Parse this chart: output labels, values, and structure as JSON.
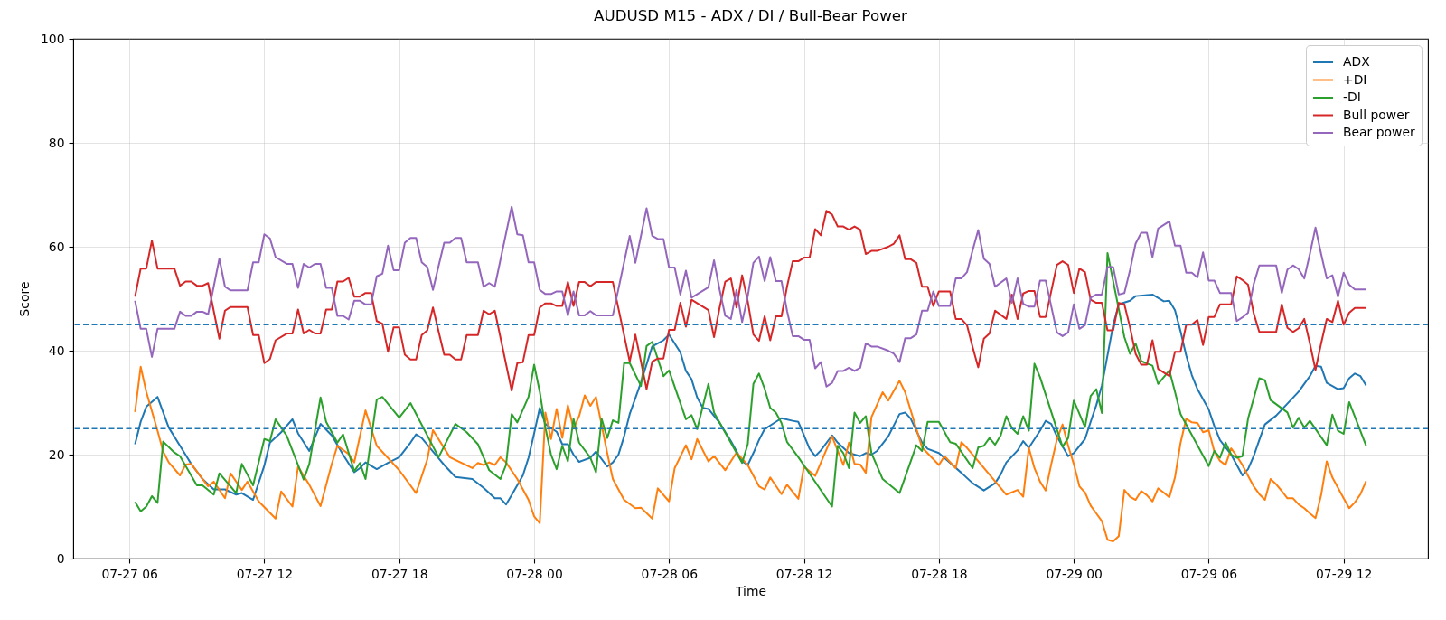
{
  "chart_data": {
    "type": "line",
    "title": "AUDUSD M15 - ADX / DI / Bull-Bear Power",
    "xlabel": "Time",
    "ylabel": "Score",
    "xlim": [
      "--07-27T03:30",
      "--07-29T15:45"
    ],
    "xticks": [
      {
        "value": "--07-27T06:00",
        "label": "07-27 06"
      },
      {
        "value": "--07-27T12:00",
        "label": "07-27 12"
      },
      {
        "value": "--07-27T18:00",
        "label": "07-27 18"
      },
      {
        "value": "--07-28T00:00",
        "label": "07-28 00"
      },
      {
        "value": "--07-28T06:00",
        "label": "07-28 06"
      },
      {
        "value": "--07-28T12:00",
        "label": "07-28 12"
      },
      {
        "value": "--07-28T18:00",
        "label": "07-28 18"
      },
      {
        "value": "--07-29T00:00",
        "label": "07-29 00"
      },
      {
        "value": "--07-29T06:00",
        "label": "07-29 06"
      },
      {
        "value": "--07-29T12:00",
        "label": "07-29 12"
      }
    ],
    "ylim": [
      0,
      100
    ],
    "yticks": [
      0,
      20,
      40,
      60,
      80,
      100
    ],
    "grid": true,
    "legend": "top right",
    "ref_lines": [
      {
        "axis": "y",
        "value": 45,
        "color": "#1f77b4",
        "line_style": "dashed"
      },
      {
        "axis": "y",
        "value": 25,
        "color": "#1f77b4",
        "line_style": "dashed"
      }
    ],
    "x": [
      "--07-27T06:15",
      "--07-27T06:30",
      "--07-27T06:45",
      "--07-27T07:00",
      "--07-27T07:15",
      "--07-27T08:00",
      "--07-27T08:15",
      "--07-27T08:30",
      "--07-27T08:45",
      "--07-27T09:00",
      "--07-27T09:15",
      "--07-27T09:30",
      "--07-27T10:00",
      "--07-27T10:15",
      "--07-27T10:30",
      "--07-27T11:15",
      "--07-27T11:30",
      "--07-27T11:45",
      "--07-27T12:00",
      "--07-27T12:15",
      "--07-27T12:30",
      "--07-27T13:00",
      "--07-27T13:15",
      "--07-27T13:30",
      "--07-27T13:45",
      "--07-27T14:00",
      "--07-27T14:15",
      "--07-27T14:30",
      "--07-27T14:45",
      "--07-27T15:00",
      "--07-27T15:15",
      "--07-27T15:30",
      "--07-27T15:45",
      "--07-27T16:00",
      "--07-27T16:15",
      "--07-27T16:30",
      "--07-27T16:45",
      "--07-27T17:00",
      "--07-27T17:15",
      "--07-27T17:30",
      "--07-27T17:45",
      "--07-27T18:00",
      "--07-27T18:15",
      "--07-27T18:30",
      "--07-27T18:45",
      "--07-27T19:00",
      "--07-27T19:15",
      "--07-27T19:30",
      "--07-27T19:45",
      "--07-27T20:00",
      "--07-27T20:15",
      "--07-27T20:30",
      "--07-27T20:45",
      "--07-27T21:00",
      "--07-27T21:30",
      "--07-27T21:45",
      "--07-27T22:00",
      "--07-27T22:15",
      "--07-27T23:00",
      "--07-27T23:15",
      "--07-27T23:30",
      "--07-27T23:45",
      "--07-28T00:00",
      "--07-28T00:15",
      "--07-28T00:30",
      "--07-28T00:45",
      "--07-28T01:00",
      "--07-28T01:15",
      "--07-28T01:30",
      "--07-28T01:45",
      "--07-28T02:00",
      "--07-28T02:15",
      "--07-28T02:30",
      "--07-28T02:45",
      "--07-28T03:30",
      "--07-28T04:15",
      "--07-28T04:30",
      "--07-28T04:45",
      "--07-28T05:00",
      "--07-28T05:15",
      "--07-28T05:30",
      "--07-28T05:45",
      "--07-28T06:00",
      "--07-28T06:15",
      "--07-28T06:30",
      "--07-28T06:45",
      "--07-28T07:00",
      "--07-28T07:45",
      "--07-28T08:00",
      "--07-28T08:15",
      "--07-28T08:30",
      "--07-28T08:45",
      "--07-28T09:00",
      "--07-28T09:15",
      "--07-28T09:30",
      "--07-28T09:45",
      "--07-28T10:00",
      "--07-28T10:15",
      "--07-28T10:30",
      "--07-28T10:45",
      "--07-28T11:00",
      "--07-28T11:15",
      "--07-28T11:30",
      "--07-28T11:45",
      "--07-28T12:00",
      "--07-28T12:15",
      "--07-28T12:30",
      "--07-28T12:45",
      "--07-28T13:00",
      "--07-28T13:15",
      "--07-28T13:30",
      "--07-28T13:45",
      "--07-28T14:00",
      "--07-28T14:15",
      "--07-28T14:30",
      "--07-28T14:45",
      "--07-28T15:00",
      "--07-28T15:15",
      "--07-28T15:45",
      "--07-28T16:00",
      "--07-28T16:15",
      "--07-28T16:30",
      "--07-28T16:45",
      "--07-28T17:00",
      "--07-28T17:15",
      "--07-28T17:30",
      "--07-28T17:45",
      "--07-28T18:00",
      "--07-28T18:30",
      "--07-28T18:45",
      "--07-28T19:00",
      "--07-28T19:15",
      "--07-28T19:30",
      "--07-28T19:45",
      "--07-28T20:00",
      "--07-28T20:15",
      "--07-28T20:30",
      "--07-28T21:00",
      "--07-28T21:15",
      "--07-28T21:30",
      "--07-28T21:45",
      "--07-28T22:00",
      "--07-28T22:15",
      "--07-28T22:30",
      "--07-28T22:45",
      "--07-28T23:15",
      "--07-28T23:30",
      "--07-28T23:45",
      "--07-29T00:00",
      "--07-29T00:15",
      "--07-29T00:30",
      "--07-29T00:45",
      "--07-29T01:00",
      "--07-29T01:15",
      "--07-29T01:30",
      "--07-29T01:45",
      "--07-29T02:00",
      "--07-29T02:15",
      "--07-29T02:30",
      "--07-29T02:45",
      "--07-29T03:00",
      "--07-29T03:15",
      "--07-29T03:30",
      "--07-29T03:45",
      "--07-29T04:15",
      "--07-29T04:30",
      "--07-29T04:45",
      "--07-29T05:00",
      "--07-29T05:15",
      "--07-29T05:30",
      "--07-29T05:45",
      "--07-29T06:00",
      "--07-29T06:15",
      "--07-29T06:30",
      "--07-29T07:00",
      "--07-29T07:15",
      "--07-29T07:30",
      "--07-29T07:45",
      "--07-29T08:00",
      "--07-29T08:15",
      "--07-29T09:00",
      "--07-29T09:15",
      "--07-29T09:30",
      "--07-29T09:45",
      "--07-29T10:00",
      "--07-29T10:15",
      "--07-29T10:30",
      "--07-29T10:45",
      "--07-29T11:00",
      "--07-29T11:15",
      "--07-29T11:30",
      "--07-29T11:45",
      "--07-29T12:00",
      "--07-29T12:15",
      "--07-29T12:30",
      "--07-29T13:00"
    ],
    "series": [
      {
        "name": "ADX",
        "color": "#1f77b4",
        "x": [
          "--07-27T06:15",
          "--07-27T06:30",
          "--07-27T06:45",
          "--07-27T07:15",
          "--07-27T07:45",
          "--07-27T08:15",
          "--07-27T08:45",
          "--07-27T09:15",
          "--07-27T09:45",
          "--07-27T10:15",
          "--07-27T10:45",
          "--07-27T11:00",
          "--07-27T11:30",
          "--07-27T12:00",
          "--07-27T12:15",
          "--07-27T12:45",
          "--07-27T13:15",
          "--07-27T13:30",
          "--07-27T14:00",
          "--07-27T14:30",
          "--07-27T15:00",
          "--07-27T15:30",
          "--07-27T16:00",
          "--07-27T16:15",
          "--07-27T16:30",
          "--07-27T17:00",
          "--07-27T17:30",
          "--07-27T18:00",
          "--07-27T18:30",
          "--07-27T18:45",
          "--07-27T19:00",
          "--07-27T19:30",
          "--07-27T20:00",
          "--07-27T20:30",
          "--07-27T21:15",
          "--07-27T21:45",
          "--07-27T22:15",
          "--07-27T22:30",
          "--07-27T22:45",
          "--07-27T23:00",
          "--07-27T23:30",
          "--07-27T23:45",
          "--07-28T00:00",
          "--07-28T00:15",
          "--07-28T00:30",
          "--07-28T01:00",
          "--07-28T01:15",
          "--07-28T01:30",
          "--07-28T01:45",
          "--07-28T02:00",
          "--07-28T02:30",
          "--07-28T02:45",
          "--07-28T03:15",
          "--07-28T03:30",
          "--07-28T03:45",
          "--07-28T04:00",
          "--07-28T04:15",
          "--07-28T04:45",
          "--07-28T05:15",
          "--07-28T05:30",
          "--07-28T05:45",
          "--07-28T06:00",
          "--07-28T06:15",
          "--07-28T06:30",
          "--07-28T06:45",
          "--07-28T07:00",
          "--07-28T07:15",
          "--07-28T07:30",
          "--07-28T07:45",
          "--07-28T08:15",
          "--07-28T08:45",
          "--07-28T09:15",
          "--07-28T09:30",
          "--07-28T09:45",
          "--07-28T10:00",
          "--07-28T10:15",
          "--07-28T10:45",
          "--07-28T11:00",
          "--07-28T11:30",
          "--07-28T11:45",
          "--07-28T12:00",
          "--07-28T12:15",
          "--07-28T12:30",
          "--07-28T12:45",
          "--07-28T13:15",
          "--07-28T13:30",
          "--07-28T14:00",
          "--07-28T14:30",
          "--07-28T14:45",
          "--07-28T15:00",
          "--07-28T15:15",
          "--07-28T15:45",
          "--07-28T16:15",
          "--07-28T16:30",
          "--07-28T16:45",
          "--07-28T17:15",
          "--07-28T17:30",
          "--07-28T18:00",
          "--07-28T19:00",
          "--07-28T19:30",
          "--07-28T20:00",
          "--07-28T20:30",
          "--07-28T20:45",
          "--07-28T21:00",
          "--07-28T21:30",
          "--07-28T21:45",
          "--07-28T22:00",
          "--07-28T22:30",
          "--07-28T22:45",
          "--07-28T23:00",
          "--07-28T23:15",
          "--07-28T23:45",
          "--07-29T00:00",
          "--07-29T00:30",
          "--07-29T00:45",
          "--07-29T01:00",
          "--07-29T01:15",
          "--07-29T01:30",
          "--07-29T01:45",
          "--07-29T02:00",
          "--07-29T02:30",
          "--07-29T02:45",
          "--07-29T03:30",
          "--07-29T04:00",
          "--07-29T04:15",
          "--07-29T04:30",
          "--07-29T04:45",
          "--07-29T05:00",
          "--07-29T05:15",
          "--07-29T05:30",
          "--07-29T06:00",
          "--07-29T06:15",
          "--07-29T06:30",
          "--07-29T07:00",
          "--07-29T07:15",
          "--07-29T07:30",
          "--07-29T07:45",
          "--07-29T08:00",
          "--07-29T08:15",
          "--07-29T08:30",
          "--07-29T09:00",
          "--07-29T09:30",
          "--07-29T10:00",
          "--07-29T10:30",
          "--07-29T10:45",
          "--07-29T11:00",
          "--07-29T11:15",
          "--07-29T11:45",
          "--07-29T12:00",
          "--07-29T12:15",
          "--07-29T12:30",
          "--07-29T12:45",
          "--07-29T13:00"
        ],
        "values": [
          22.0,
          26.3,
          29.2,
          31.1,
          25.2,
          21.7,
          18.2,
          15.3,
          13.3,
          13.3,
          12.3,
          12.6,
          11.3,
          17.9,
          22.3,
          24.3,
          26.8,
          24.1,
          20.7,
          25.9,
          23.7,
          20.0,
          16.6,
          17.4,
          18.5,
          17.2,
          18.4,
          19.5,
          22.3,
          23.9,
          23.2,
          20.6,
          18.0,
          15.7,
          15.3,
          13.6,
          11.6,
          11.6,
          10.4,
          12.2,
          16.0,
          19.4,
          24.1,
          29.0,
          25.9,
          24.4,
          22.0,
          22.0,
          20.0,
          18.6,
          19.4,
          20.6,
          17.7,
          18.5,
          20.0,
          23.5,
          27.8,
          33.9,
          40.8,
          41.4,
          42.0,
          43.1,
          41.4,
          39.7,
          36.1,
          34.5,
          31.0,
          29.0,
          28.8,
          26.1,
          22.6,
          18.7,
          18.0,
          20.3,
          22.8,
          24.9,
          26.3,
          27.0,
          26.5,
          26.3,
          23.7,
          21.1,
          19.7,
          20.8,
          23.7,
          22.3,
          20.3,
          19.7,
          20.3,
          20.0,
          20.7,
          23.5,
          27.8,
          28.1,
          26.9,
          22.3,
          21.1,
          20.3,
          16.5,
          14.5,
          13.1,
          14.5,
          16.2,
          18.5,
          20.8,
          22.6,
          21.3,
          24.6,
          26.5,
          25.9,
          23.5,
          19.7,
          20.3,
          23.0,
          26.3,
          29.5,
          33.3,
          39.1,
          44.9,
          48.9,
          49.6,
          50.5,
          50.8,
          49.5,
          49.6,
          47.8,
          43.7,
          39.1,
          35.3,
          32.6,
          28.7,
          25.5,
          22.8,
          20.0,
          18.0,
          16.0,
          17.2,
          19.7,
          22.8,
          25.8,
          27.5,
          29.8,
          32.1,
          35.1,
          37.1,
          36.9,
          33.8,
          32.6,
          32.8,
          34.7,
          35.6,
          35.1,
          33.3
        ]
      },
      {
        "name": "+DI",
        "color": "#ff7f0e",
        "x": [
          "--07-27T06:15",
          "--07-27T06:30",
          "--07-27T06:45",
          "--07-27T07:15",
          "--07-27T07:30",
          "--07-27T07:45",
          "--07-27T08:15",
          "--07-27T08:30",
          "--07-27T08:45",
          "--07-27T09:30",
          "--07-27T09:45",
          "--07-27T10:15",
          "--07-27T10:30",
          "--07-27T11:00",
          "--07-27T11:15",
          "--07-27T11:45",
          "--07-27T12:30",
          "--07-27T12:45",
          "--07-27T13:15",
          "--07-27T13:30",
          "--07-27T14:00",
          "--07-27T14:30",
          "--07-27T15:00",
          "--07-27T15:15",
          "--07-27T15:45",
          "--07-27T16:00",
          "--07-27T16:30",
          "--07-27T17:00",
          "--07-27T18:00",
          "--07-27T18:45",
          "--07-27T19:15",
          "--07-27T19:30",
          "--07-27T20:15",
          "--07-27T21:15",
          "--07-27T21:30",
          "--07-27T21:45",
          "--07-27T22:00",
          "--07-27T22:15",
          "--07-27T22:30",
          "--07-27T22:45",
          "--07-27T23:15",
          "--07-27T23:45",
          "--07-28T00:00",
          "--07-28T00:15",
          "--07-28T00:30",
          "--07-28T00:45",
          "--07-28T01:00",
          "--07-28T01:15",
          "--07-28T01:30",
          "--07-28T01:45",
          "--07-28T02:00",
          "--07-28T02:15",
          "--07-28T02:30",
          "--07-28T02:45",
          "--07-28T03:15",
          "--07-28T03:30",
          "--07-28T04:00",
          "--07-28T04:30",
          "--07-28T04:45",
          "--07-28T05:15",
          "--07-28T05:30",
          "--07-28T06:00",
          "--07-28T06:15",
          "--07-28T06:45",
          "--07-28T07:00",
          "--07-28T07:15",
          "--07-28T07:45",
          "--07-28T08:00",
          "--07-28T08:30",
          "--07-28T09:00",
          "--07-28T09:30",
          "--07-28T10:00",
          "--07-28T10:15",
          "--07-28T10:30",
          "--07-28T11:00",
          "--07-28T11:15",
          "--07-28T11:45",
          "--07-28T12:00",
          "--07-28T12:30",
          "--07-28T13:15",
          "--07-28T13:45",
          "--07-28T14:00",
          "--07-28T14:15",
          "--07-28T14:30",
          "--07-28T14:45",
          "--07-28T15:00",
          "--07-28T15:30",
          "--07-28T15:45",
          "--07-28T16:15",
          "--07-28T16:30",
          "--07-28T17:15",
          "--07-28T18:00",
          "--07-28T18:15",
          "--07-28T18:45",
          "--07-28T19:00",
          "--07-28T19:15",
          "--07-28T21:00",
          "--07-28T21:30",
          "--07-28T21:45",
          "--07-28T22:00",
          "--07-28T22:15",
          "--07-28T22:30",
          "--07-28T22:45",
          "--07-28T23:00",
          "--07-28T23:15",
          "--07-28T23:30",
          "--07-28T23:45",
          "--07-29T00:00",
          "--07-29T00:15",
          "--07-29T00:30",
          "--07-29T00:45",
          "--07-29T01:00",
          "--07-29T01:15",
          "--07-29T01:30",
          "--07-29T01:45",
          "--07-29T02:00",
          "--07-29T02:15",
          "--07-29T02:30",
          "--07-29T02:45",
          "--07-29T03:00",
          "--07-29T03:15",
          "--07-29T03:30",
          "--07-29T03:45",
          "--07-29T04:00",
          "--07-29T04:15",
          "--07-29T04:30",
          "--07-29T04:45",
          "--07-29T05:00",
          "--07-29T05:15",
          "--07-29T05:30",
          "--07-29T05:45",
          "--07-29T06:00",
          "--07-29T06:15",
          "--07-29T06:30",
          "--07-29T06:45",
          "--07-29T07:00",
          "--07-29T07:15",
          "--07-29T07:30",
          "--07-29T07:45",
          "--07-29T08:00",
          "--07-29T08:15",
          "--07-29T08:30",
          "--07-29T08:45",
          "--07-29T09:00",
          "--07-29T09:15",
          "--07-29T09:30",
          "--07-29T09:45",
          "--07-29T10:00",
          "--07-29T10:15",
          "--07-29T10:30",
          "--07-29T10:45",
          "--07-29T11:00",
          "--07-29T11:15",
          "--07-29T11:30",
          "--07-29T11:45",
          "--07-29T12:00",
          "--07-29T12:15",
          "--07-29T12:30",
          "--07-29T12:45",
          "--07-29T13:00"
        ],
        "values": [
          28.2,
          36.9,
          32.1,
          24.6,
          20.6,
          18.5,
          16.0,
          18.1,
          18.2,
          13.9,
          14.8,
          11.6,
          16.4,
          13.2,
          14.8,
          11.0,
          7.7,
          12.9,
          10.0,
          17.7,
          14.2,
          10.1,
          18.2,
          21.7,
          20.1,
          18.5,
          28.5,
          21.7,
          17.0,
          12.6,
          19.1,
          24.7,
          19.5,
          17.4,
          18.4,
          18.0,
          18.5,
          18.0,
          19.5,
          18.5,
          15.3,
          11.3,
          8.1,
          6.8,
          28.1,
          23.0,
          28.8,
          23.2,
          29.5,
          25.0,
          27.4,
          31.4,
          29.4,
          31.1,
          20.3,
          15.3,
          11.3,
          9.7,
          9.8,
          7.7,
          13.5,
          11.0,
          17.4,
          21.8,
          19.1,
          23.0,
          18.7,
          19.7,
          17.0,
          20.4,
          18.0,
          13.9,
          13.3,
          15.6,
          12.4,
          14.2,
          11.5,
          17.7,
          15.9,
          23.5,
          18.0,
          22.3,
          18.2,
          18.1,
          16.5,
          27.2,
          32.0,
          30.4,
          34.2,
          32.0,
          21.4,
          18.0,
          19.7,
          17.4,
          22.4,
          21.3,
          12.3,
          13.2,
          11.9,
          21.3,
          17.4,
          14.8,
          13.1,
          18.2,
          22.9,
          25.8,
          21.7,
          18.2,
          13.9,
          12.7,
          10.2,
          8.7,
          7.2,
          3.6,
          3.3,
          4.3,
          13.2,
          11.9,
          11.3,
          13.0,
          12.2,
          11.0,
          13.5,
          12.7,
          11.8,
          15.6,
          22.3,
          26.9,
          26.2,
          26.1,
          24.3,
          24.7,
          20.6,
          18.8,
          18.0,
          21.2,
          19.7,
          18.0,
          15.9,
          13.9,
          12.4,
          11.3,
          15.3,
          14.3,
          13.0,
          11.6,
          11.6,
          10.4,
          9.7,
          8.7,
          7.8,
          12.2,
          18.7,
          15.6,
          13.6,
          11.6,
          9.7,
          10.8,
          12.4,
          14.9
        ]
      },
      {
        "name": "-DI",
        "color": "#2ca02c",
        "x": [
          "--07-27T06:15",
          "--07-27T06:30",
          "--07-27T06:45",
          "--07-27T07:00",
          "--07-27T07:15",
          "--07-27T07:30",
          "--07-27T08:00",
          "--07-27T08:15",
          "--07-27T09:00",
          "--07-27T09:15",
          "--07-27T09:45",
          "--07-27T10:00",
          "--07-27T10:45",
          "--07-27T11:00",
          "--07-27T11:30",
          "--07-27T12:00",
          "--07-27T12:15",
          "--07-27T12:30",
          "--07-27T13:00",
          "--07-27T13:45",
          "--07-27T14:00",
          "--07-27T14:30",
          "--07-27T14:45",
          "--07-27T15:15",
          "--07-27T15:30",
          "--07-27T16:00",
          "--07-27T16:15",
          "--07-27T16:30",
          "--07-27T17:00",
          "--07-27T17:15",
          "--07-27T18:00",
          "--07-27T18:30",
          "--07-27T19:45",
          "--07-27T20:30",
          "--07-27T21:00",
          "--07-27T21:30",
          "--07-27T22:00",
          "--07-27T22:30",
          "--07-27T22:45",
          "--07-27T23:00",
          "--07-27T23:15",
          "--07-27T23:45",
          "--07-28T00:00",
          "--07-28T00:15",
          "--07-28T00:30",
          "--07-28T00:45",
          "--07-28T01:00",
          "--07-28T01:15",
          "--07-28T01:30",
          "--07-28T01:45",
          "--07-28T02:00",
          "--07-28T02:30",
          "--07-28T02:45",
          "--07-28T03:00",
          "--07-28T03:15",
          "--07-28T03:30",
          "--07-28T03:45",
          "--07-28T04:00",
          "--07-28T04:15",
          "--07-28T04:45",
          "--07-28T05:00",
          "--07-28T05:15",
          "--07-28T05:45",
          "--07-28T06:00",
          "--07-28T06:45",
          "--07-28T07:00",
          "--07-28T07:15",
          "--07-28T07:45",
          "--07-28T08:00",
          "--07-28T09:15",
          "--07-28T09:30",
          "--07-28T09:45",
          "--07-28T10:00",
          "--07-28T10:15",
          "--07-28T10:30",
          "--07-28T10:45",
          "--07-28T11:00",
          "--07-28T11:15",
          "--07-28T11:45",
          "--07-28T13:15",
          "--07-28T13:30",
          "--07-28T13:45",
          "--07-28T14:00",
          "--07-28T14:15",
          "--07-28T14:30",
          "--07-28T14:45",
          "--07-28T15:00",
          "--07-28T15:30",
          "--07-28T16:15",
          "--07-28T17:00",
          "--07-28T17:15",
          "--07-28T17:30",
          "--07-28T18:00",
          "--07-28T18:30",
          "--07-28T18:45",
          "--07-28T19:30",
          "--07-28T19:45",
          "--07-28T20:00",
          "--07-28T20:15",
          "--07-28T20:30",
          "--07-28T20:45",
          "--07-28T21:00",
          "--07-28T21:15",
          "--07-28T21:30",
          "--07-28T21:45",
          "--07-28T22:00",
          "--07-28T22:15",
          "--07-28T22:30",
          "--07-28T23:30",
          "--07-28T23:45",
          "--07-29T00:00",
          "--07-29T00:30",
          "--07-29T00:45",
          "--07-29T01:00",
          "--07-29T01:15",
          "--07-29T01:30",
          "--07-29T02:15",
          "--07-29T02:30",
          "--07-29T02:45",
          "--07-29T03:00",
          "--07-29T03:30",
          "--07-29T03:45",
          "--07-29T04:15",
          "--07-29T04:30",
          "--07-29T04:45",
          "--07-29T06:00",
          "--07-29T06:15",
          "--07-29T06:30",
          "--07-29T06:45",
          "--07-29T07:00",
          "--07-29T07:15",
          "--07-29T07:30",
          "--07-29T07:45",
          "--07-29T08:15",
          "--07-29T08:30",
          "--07-29T08:45",
          "--07-29T09:30",
          "--07-29T09:45",
          "--07-29T10:00",
          "--07-29T10:15",
          "--07-29T10:30",
          "--07-29T11:15",
          "--07-29T11:30",
          "--07-29T11:45",
          "--07-29T12:00",
          "--07-29T12:15",
          "--07-29T13:00"
        ],
        "values": [
          10.9,
          9.1,
          10.0,
          12.0,
          10.7,
          22.5,
          20.4,
          19.7,
          14.1,
          14.1,
          12.3,
          16.4,
          12.6,
          18.2,
          14.1,
          23.0,
          22.6,
          26.8,
          23.6,
          15.2,
          18.2,
          31.0,
          26.3,
          22.3,
          23.9,
          16.8,
          18.4,
          15.3,
          30.6,
          31.1,
          27.1,
          29.9,
          19.5,
          25.9,
          24.3,
          22.0,
          17.0,
          15.3,
          18.0,
          27.8,
          26.2,
          31.1,
          37.3,
          32.1,
          25.2,
          20.0,
          17.2,
          21.7,
          18.7,
          26.9,
          22.3,
          19.4,
          16.6,
          26.9,
          23.2,
          26.6,
          26.1,
          37.6,
          37.6,
          33.2,
          40.9,
          41.7,
          35.1,
          36.2,
          26.8,
          27.6,
          24.9,
          33.6,
          28.1,
          18.4,
          22.0,
          33.6,
          35.6,
          32.7,
          29.0,
          28.1,
          26.1,
          22.4,
          19.5,
          10.0,
          21.7,
          20.3,
          17.4,
          28.1,
          26.1,
          27.4,
          20.3,
          15.3,
          12.6,
          21.8,
          20.7,
          26.3,
          26.3,
          22.4,
          22.1,
          17.4,
          21.4,
          21.7,
          23.2,
          21.9,
          23.7,
          27.4,
          25.1,
          24.0,
          27.4,
          24.6,
          37.5,
          34.9,
          21.5,
          23.2,
          30.4,
          25.3,
          31.3,
          32.6,
          28.0,
          58.8,
          42.6,
          39.4,
          41.4,
          38.0,
          37.1,
          33.6,
          36.2,
          32.1,
          27.8,
          17.8,
          20.7,
          19.4,
          22.3,
          20.0,
          19.4,
          19.7,
          26.9,
          34.7,
          34.3,
          30.5,
          28.1,
          25.2,
          27.1,
          25.2,
          26.5,
          21.8,
          27.7,
          24.6,
          24.0,
          30.1,
          21.7
        ]
      },
      {
        "name": "Bull power",
        "color": "#d62728",
        "values": [
          50.4,
          55.8,
          55.8,
          61.2,
          55.8,
          55.8,
          52.5,
          53.3,
          53.3,
          52.5,
          52.5,
          53.0,
          42.3,
          47.7,
          48.4,
          48.4,
          43.0,
          43.0,
          37.6,
          38.4,
          42.0,
          43.3,
          43.3,
          47.9,
          43.3,
          44.0,
          43.3,
          43.3,
          47.9,
          47.9,
          53.3,
          53.3,
          54.0,
          50.4,
          50.4,
          51.1,
          51.1,
          45.7,
          45.2,
          39.8,
          44.5,
          44.5,
          39.2,
          38.3,
          38.3,
          43.0,
          43.9,
          48.3,
          43.7,
          39.2,
          39.2,
          38.3,
          38.3,
          43.0,
          43.0,
          47.7,
          47.0,
          47.7,
          32.3,
          37.6,
          37.8,
          43.0,
          43.0,
          48.3,
          49.1,
          49.1,
          48.6,
          48.6,
          53.2,
          48.6,
          53.2,
          53.2,
          52.4,
          53.2,
          53.2,
          37.9,
          43.1,
          37.9,
          32.6,
          37.9,
          38.5,
          38.5,
          44.0,
          44.0,
          49.2,
          44.6,
          49.8,
          47.8,
          42.6,
          48.3,
          53.3,
          53.9,
          48.3,
          54.5,
          49.5,
          43.1,
          41.9,
          46.6,
          42.0,
          46.6,
          46.6,
          52.4,
          57.2,
          57.2,
          57.9,
          57.9,
          63.4,
          62.2,
          66.9,
          66.2,
          63.9,
          63.9,
          63.3,
          63.9,
          63.3,
          58.6,
          59.2,
          59.2,
          60.0,
          60.6,
          62.2,
          57.6,
          57.6,
          56.9,
          52.3,
          52.3,
          48.6,
          51.4,
          51.4,
          46.1,
          46.1,
          44.9,
          40.7,
          36.8,
          42.3,
          43.3,
          47.7,
          46.1,
          50.8,
          46.1,
          51.0,
          51.5,
          51.5,
          46.5,
          46.5,
          56.5,
          57.2,
          56.5,
          51.1,
          55.8,
          55.1,
          49.8,
          49.2,
          49.2,
          43.9,
          43.9,
          49.2,
          48.9,
          44.5,
          39.4,
          37.3,
          37.3,
          42.0,
          36.5,
          35.1,
          39.8,
          39.8,
          45.0,
          45.0,
          45.9,
          41.1,
          46.5,
          46.5,
          48.9,
          48.9,
          54.3,
          53.6,
          52.7,
          47.2,
          43.6,
          43.6,
          48.9,
          44.4,
          43.6,
          44.3,
          46.1,
          41.4,
          36.3,
          41.4,
          46.1,
          45.5,
          49.6,
          45.0,
          47.3,
          48.2,
          48.2
        ]
      },
      {
        "name": "Bear power",
        "color": "#9467bd",
        "values": [
          49.6,
          44.2,
          44.2,
          38.8,
          44.2,
          44.2,
          47.5,
          46.7,
          46.7,
          47.5,
          47.5,
          47.0,
          57.7,
          52.3,
          51.6,
          51.6,
          57.0,
          57.0,
          62.4,
          61.6,
          58.0,
          56.7,
          56.7,
          52.1,
          56.7,
          56.0,
          56.7,
          56.7,
          52.1,
          52.1,
          46.7,
          46.7,
          46.0,
          49.6,
          49.6,
          48.9,
          48.9,
          54.3,
          54.8,
          60.2,
          55.5,
          55.5,
          60.8,
          61.7,
          61.7,
          57.0,
          56.1,
          51.7,
          56.3,
          60.8,
          60.8,
          61.7,
          61.7,
          57.0,
          57.0,
          52.3,
          53.0,
          52.3,
          67.7,
          62.4,
          62.2,
          57.0,
          57.0,
          51.7,
          50.9,
          50.9,
          51.4,
          51.4,
          46.8,
          51.4,
          46.8,
          46.8,
          47.6,
          46.8,
          46.8,
          62.1,
          56.9,
          62.1,
          67.4,
          62.1,
          61.5,
          61.5,
          56.0,
          56.0,
          50.8,
          55.4,
          50.2,
          52.2,
          57.4,
          51.7,
          46.7,
          46.1,
          51.7,
          45.5,
          50.5,
          56.9,
          58.1,
          53.4,
          58.0,
          53.4,
          53.4,
          47.6,
          42.8,
          42.8,
          42.1,
          42.1,
          36.6,
          37.8,
          33.1,
          33.8,
          36.1,
          36.1,
          36.7,
          36.1,
          36.7,
          41.4,
          40.8,
          40.8,
          40.0,
          39.4,
          37.8,
          42.4,
          42.4,
          43.1,
          47.7,
          47.7,
          51.4,
          48.6,
          48.6,
          53.9,
          53.9,
          55.1,
          59.3,
          63.2,
          57.7,
          56.7,
          52.3,
          53.9,
          49.2,
          53.9,
          49.0,
          48.5,
          48.5,
          53.5,
          53.5,
          43.5,
          42.8,
          43.5,
          48.9,
          44.2,
          44.9,
          50.2,
          50.8,
          50.8,
          56.1,
          56.1,
          50.8,
          51.1,
          55.5,
          60.6,
          62.7,
          62.7,
          58.0,
          63.5,
          64.9,
          60.2,
          60.2,
          55.0,
          55.0,
          54.1,
          58.9,
          53.5,
          53.5,
          51.1,
          51.1,
          45.7,
          46.4,
          47.3,
          52.8,
          56.4,
          56.4,
          51.1,
          55.6,
          56.4,
          55.7,
          53.9,
          58.6,
          63.7,
          58.6,
          53.9,
          54.5,
          50.4,
          55.0,
          52.7,
          51.8,
          51.8
        ]
      }
    ]
  }
}
